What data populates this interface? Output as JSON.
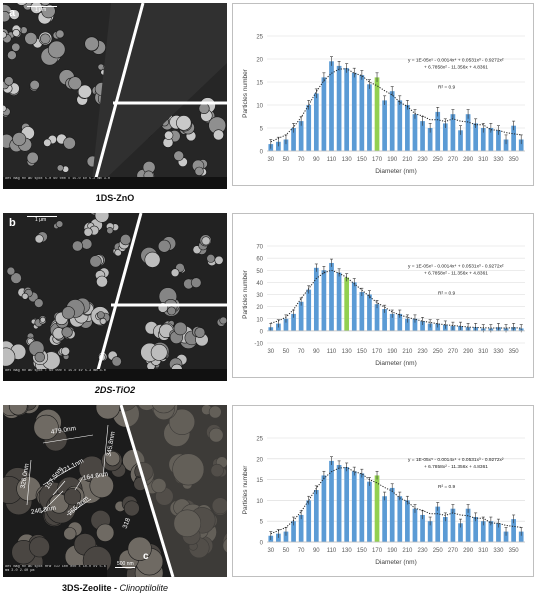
{
  "panels": [
    {
      "letter": "a",
      "caption": "1DS-ZnO",
      "scale_label": "1 μm",
      "info_text": "det mag HV WD spot  5.0 60 000 x 15.0 kV 5.2 mm 3.0",
      "measurements": []
    },
    {
      "letter": "b",
      "caption": "2DS-TiO2",
      "scale_label": "1 μm",
      "info_text": "det mag HV WD spot  T 60 000 x 15.0 kV 5.3 mm 3.0",
      "measurements": []
    },
    {
      "letter": "c",
      "caption_main": "3DS-Zeolite - ",
      "caption_italic": "Clinoptilolite",
      "scale_label": "500 nm",
      "info_text": "det mag HV WD spot HFW  TLD 100 000 x 10.0 kV 5.6 mm 3.0 2.40 μm",
      "measurements": [
        "479.0nm",
        "345.8nm",
        "326.0nm",
        "321.1nm",
        "157.5nm",
        "164.6nm",
        "246.8nm",
        "255.3nm",
        "318"
      ]
    }
  ],
  "chart_data": [
    {
      "type": "bar",
      "xlabel": "Diameter (nm)",
      "ylabel": "Particles number",
      "ylim": [
        0,
        25
      ],
      "yticks": [
        0,
        5,
        10,
        15,
        20,
        25
      ],
      "xticks": [
        30,
        50,
        70,
        90,
        110,
        130,
        150,
        170,
        190,
        210,
        230,
        250,
        270,
        290,
        310,
        330,
        350
      ],
      "x": [
        30,
        40,
        50,
        60,
        70,
        80,
        90,
        100,
        110,
        120,
        130,
        140,
        150,
        160,
        170,
        180,
        190,
        200,
        210,
        220,
        230,
        240,
        250,
        260,
        270,
        280,
        290,
        300,
        310,
        320,
        330,
        340,
        350,
        360
      ],
      "values": [
        1.5,
        2,
        2.5,
        5,
        6.5,
        10,
        12.5,
        16,
        19.5,
        18.5,
        18,
        17,
        16.5,
        14.5,
        16,
        11,
        13,
        11,
        10,
        8,
        6.5,
        5,
        8.5,
        6,
        8,
        4.5,
        8,
        6,
        5,
        5,
        4.5,
        2.5,
        5.5,
        2.5
      ],
      "highlight_x": 170,
      "bar_color": "#5b9bd5",
      "highlight_color": "#92d050",
      "trendline": "dotted",
      "annotation_eq_1": "y = 1E-05x⁵ - 0.0014x⁴ + 0.0531x³ - 0.9272x²",
      "annotation_eq_2": "+ 6.7858x² - 11.356x + 4.8361",
      "annotation_r2": "R² = 0.9"
    },
    {
      "type": "bar",
      "xlabel": "Diameter (nm)",
      "ylabel": "Particles number",
      "ylim": [
        -10,
        70
      ],
      "yticks": [
        -10,
        0,
        10,
        20,
        30,
        40,
        50,
        60,
        70
      ],
      "xticks": [
        30,
        50,
        70,
        90,
        110,
        130,
        150,
        170,
        190,
        210,
        230,
        250,
        270,
        290,
        310,
        330,
        350
      ],
      "x": [
        30,
        40,
        50,
        60,
        70,
        80,
        90,
        100,
        110,
        120,
        130,
        140,
        150,
        160,
        170,
        180,
        190,
        200,
        210,
        220,
        230,
        240,
        250,
        260,
        270,
        280,
        290,
        300,
        310,
        320,
        330,
        340,
        350,
        360
      ],
      "values": [
        3,
        6,
        10,
        14,
        24,
        34,
        52,
        50,
        56,
        48,
        44,
        40,
        32,
        30,
        22,
        18,
        14,
        14,
        10,
        10,
        8,
        6,
        6,
        5,
        4,
        4,
        3,
        3,
        2,
        2,
        3,
        2,
        3,
        2
      ],
      "highlight_x": 130,
      "bar_color": "#5b9bd5",
      "highlight_color": "#92d050",
      "trendline": "dotted",
      "annotation_eq_1": "y = 1E-05x⁵ - 0.0014x⁴ + 0.0531x³ - 0.9272x²",
      "annotation_eq_2": "+ 6.7858x² - 11.356x + 4.8361",
      "annotation_r2": "R² = 0.9"
    },
    {
      "type": "bar",
      "xlabel": "Diameter (nm)",
      "ylabel": "Particles number",
      "ylim": [
        0,
        25
      ],
      "yticks": [
        0,
        5,
        10,
        15,
        20,
        25
      ],
      "xticks": [
        30,
        50,
        70,
        90,
        110,
        130,
        150,
        170,
        190,
        210,
        230,
        250,
        270,
        290,
        310,
        330,
        350
      ],
      "x": [
        30,
        40,
        50,
        60,
        70,
        80,
        90,
        100,
        110,
        120,
        130,
        140,
        150,
        160,
        170,
        180,
        190,
        200,
        210,
        220,
        230,
        240,
        250,
        260,
        270,
        280,
        290,
        300,
        310,
        320,
        330,
        340,
        350,
        360
      ],
      "values": [
        1.5,
        2,
        2.5,
        5,
        6.5,
        10,
        12.5,
        16,
        19.5,
        18.5,
        18,
        17,
        16.5,
        14.5,
        16,
        11,
        13,
        11,
        10,
        8,
        6.5,
        5,
        8.5,
        6,
        8,
        4.5,
        8,
        6,
        5,
        5,
        4.5,
        2.5,
        5.5,
        2.5
      ],
      "highlight_x": 170,
      "bar_color": "#5b9bd5",
      "highlight_color": "#92d050",
      "trendline": "dotted",
      "annotation_eq_1": "y = 1E-05x⁵ - 0.0014x⁴ + 0.0531x³ - 0.9272x²",
      "annotation_eq_2": "+ 6.7858x² - 11.356x + 4.8361",
      "annotation_r2": "R² = 0.9"
    }
  ]
}
